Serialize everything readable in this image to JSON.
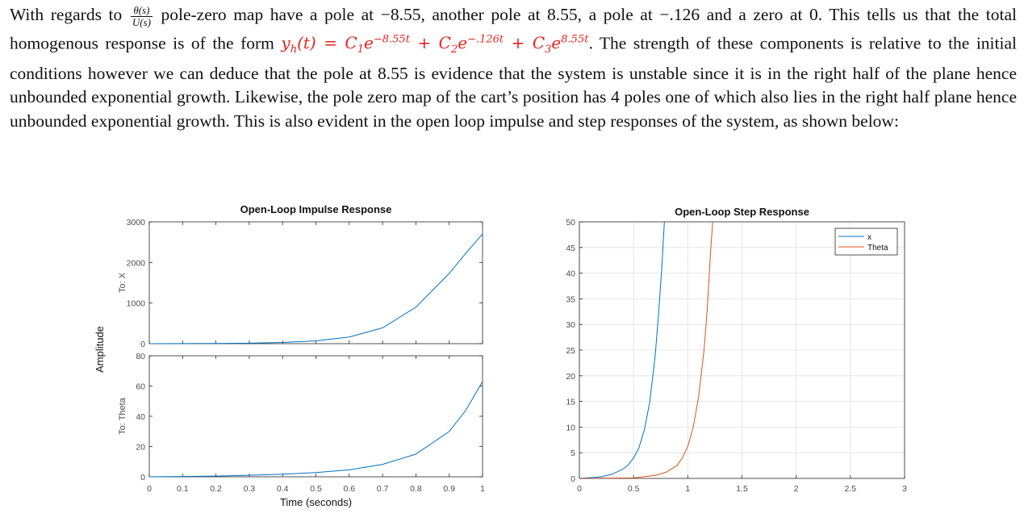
{
  "paragraph": {
    "p1": "With regards to ",
    "frac_num": "θ(s)",
    "frac_den": "U(s)",
    "p2": " pole-zero map have a pole at −8.55, another pole at 8.55, a pole at −.126 and a zero at 0. This tells us that the total homogenous response is of the form ",
    "eq_y": "y",
    "eq_h": "h",
    "eq_t": "(t) = C",
    "eq_1": "1",
    "eq_e1": "e",
    "eq_exp1": "−8.55t",
    "eq_plus1": " + C",
    "eq_2": "2",
    "eq_e2": "e",
    "eq_exp2": "−.126t",
    "eq_plus2": " + C",
    "eq_3": "3",
    "eq_e3": "e",
    "eq_exp3": "8.55t",
    "p3": ". The strength of these components is relative to the initial conditions however we can deduce that the pole at 8.55 is evidence that the system is unstable since it is in the right half of the plane hence unbounded exponential growth. Likewise, the pole zero map of the cart’s position has 4 poles one of which also lies in the right half plane hence unbounded exponential growth. This is also evident in the open loop impulse and step responses of the system, as shown below:"
  },
  "colors": {
    "text": "#111111",
    "equation": "#e8211f",
    "series1": "#0072bd",
    "series2": "#d95319",
    "grid": "#e0e0e0",
    "axis": "#262626",
    "tick_label": "#4d4d4d"
  },
  "chart_data": [
    {
      "type": "line",
      "title": "Open-Loop Impulse Response",
      "ylabel": "Amplitude",
      "xlabel": "Time (seconds)",
      "subplots": [
        {
          "ylabel": "To: X",
          "ylim": [
            0,
            3000
          ],
          "yticks": [
            "0",
            "1000",
            "2000",
            "3000"
          ],
          "x": [
            0,
            0.1,
            0.2,
            0.3,
            0.4,
            0.5,
            0.6,
            0.7,
            0.8,
            0.9,
            0.95,
            1.0
          ],
          "values": [
            0,
            2,
            5,
            12,
            30,
            70,
            165,
            390,
            900,
            1730,
            2230,
            2700
          ]
        },
        {
          "ylabel": "To: Theta",
          "ylim": [
            0,
            80
          ],
          "yticks": [
            "0",
            "20",
            "40",
            "60",
            "80"
          ],
          "x": [
            0,
            0.1,
            0.2,
            0.3,
            0.4,
            0.5,
            0.6,
            0.7,
            0.8,
            0.9,
            0.95,
            1.0
          ],
          "values": [
            0,
            0.2,
            0.5,
            1.0,
            1.7,
            2.8,
            4.6,
            8.2,
            15,
            30,
            44,
            63
          ]
        }
      ],
      "xlim": [
        0,
        1
      ],
      "xticks": [
        "0",
        "0.1",
        "0.2",
        "0.3",
        "0.4",
        "0.5",
        "0.6",
        "0.7",
        "0.8",
        "0.9",
        "1"
      ],
      "grid": false
    },
    {
      "type": "line",
      "title": "Open-Loop Step Response",
      "xlim": [
        0,
        3
      ],
      "ylim": [
        0,
        50
      ],
      "xticks": [
        "0",
        "0.5",
        "1",
        "1.5",
        "2",
        "2.5",
        "3"
      ],
      "yticks": [
        "0",
        "5",
        "10",
        "15",
        "20",
        "25",
        "30",
        "35",
        "40",
        "45",
        "50"
      ],
      "grid": true,
      "legend": "top-right",
      "series": [
        {
          "name": "x",
          "x": [
            0,
            0.2,
            0.3,
            0.4,
            0.45,
            0.5,
            0.55,
            0.6,
            0.65,
            0.7,
            0.73,
            0.76,
            0.8
          ],
          "values": [
            0,
            0.3,
            0.8,
            1.8,
            2.6,
            4.0,
            6.0,
            9.5,
            15,
            24,
            32,
            41,
            56
          ]
        },
        {
          "name": "Theta",
          "x": [
            0,
            0.5,
            0.7,
            0.8,
            0.9,
            0.95,
            1.0,
            1.05,
            1.1,
            1.15,
            1.18,
            1.21,
            1.25
          ],
          "values": [
            0,
            0.1,
            0.6,
            1.2,
            2.5,
            4.0,
            6.2,
            10,
            16,
            25,
            33,
            44,
            56
          ]
        }
      ]
    }
  ]
}
